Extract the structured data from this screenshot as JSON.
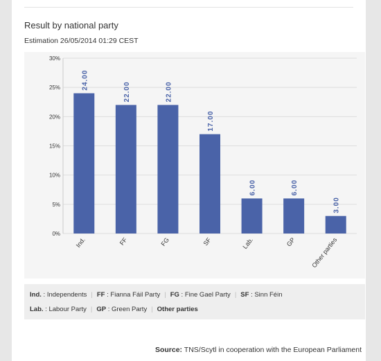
{
  "header": {
    "title": "Result by national party",
    "subtitle": "Estimation 26/05/2014 01:29 CEST"
  },
  "colors": {
    "bar": "#4a63a8",
    "label": "#4a63a8",
    "grid": "#dddddd"
  },
  "chart_data": {
    "type": "bar",
    "title": "",
    "xlabel": "",
    "ylabel": "",
    "categories": [
      "Ind.",
      "FF",
      "FG",
      "SF",
      "Lab.",
      "GP",
      "Other parties"
    ],
    "values": [
      24.0,
      22.0,
      22.0,
      17.0,
      6.0,
      6.0,
      3.0
    ],
    "data_labels": [
      "24.00",
      "22.00",
      "22.00",
      "17.00",
      "6.00",
      "6.00",
      "3.00"
    ],
    "y_ticks": [
      "0%",
      "5%",
      "10%",
      "15%",
      "20%",
      "25%",
      "30%"
    ],
    "ylim": [
      0,
      30
    ],
    "grid": true
  },
  "legend": {
    "row1": [
      {
        "abbr": "Ind.",
        "name": "Independents"
      },
      {
        "abbr": "FF",
        "name": "Fianna Fáil Party"
      },
      {
        "abbr": "FG",
        "name": "Fine Gael Party"
      },
      {
        "abbr": "SF",
        "name": "Sinn Féin"
      }
    ],
    "row2": [
      {
        "abbr": "Lab.",
        "name": "Labour Party"
      },
      {
        "abbr": "GP",
        "name": "Green Party"
      }
    ],
    "other_label": "Other parties",
    "sep": ":"
  },
  "source": {
    "label": "Source:",
    "text": "TNS/Scytl in cooperation with the European Parliament"
  }
}
